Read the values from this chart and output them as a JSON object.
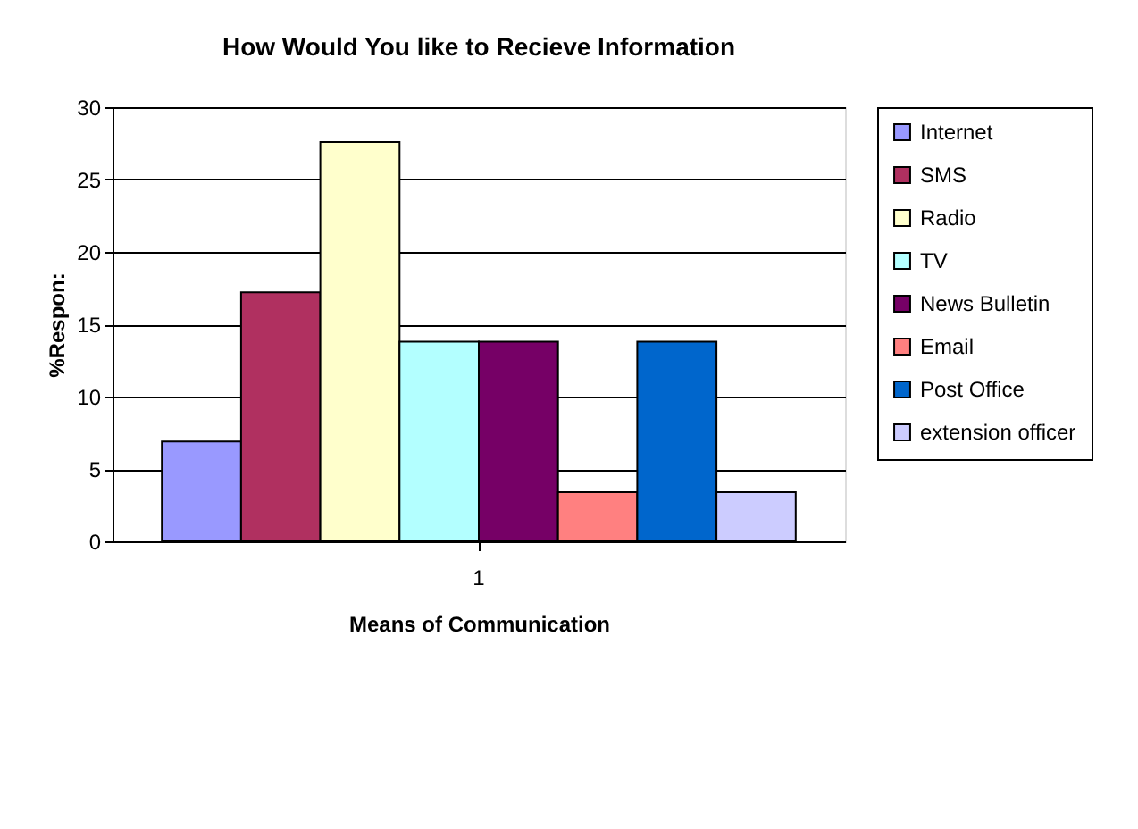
{
  "chart_data": {
    "type": "bar",
    "title": "How Would You like to Recieve Information",
    "xlabel": "Means of Communication",
    "ylabel": "%Respon:",
    "categories": [
      "1"
    ],
    "series": [
      {
        "name": "Internet",
        "color": "#9999ff",
        "values": [
          6.9
        ]
      },
      {
        "name": "SMS",
        "color": "#b03060",
        "values": [
          17.2
        ]
      },
      {
        "name": "Radio",
        "color": "#ffffcc",
        "values": [
          27.6
        ]
      },
      {
        "name": "TV",
        "color": "#b3ffff",
        "values": [
          13.8
        ]
      },
      {
        "name": "News Bulletin",
        "color": "#760066",
        "values": [
          13.8
        ]
      },
      {
        "name": "Email",
        "color": "#ff8080",
        "values": [
          3.4
        ]
      },
      {
        "name": "Post Office",
        "color": "#0066cc",
        "values": [
          13.8
        ]
      },
      {
        "name": "extension officer",
        "color": "#ccccff",
        "values": [
          3.4
        ]
      }
    ],
    "ylim": [
      0,
      30
    ],
    "yticks": [
      0,
      5,
      10,
      15,
      20,
      25,
      30
    ],
    "grid": "y",
    "legend": "right"
  }
}
